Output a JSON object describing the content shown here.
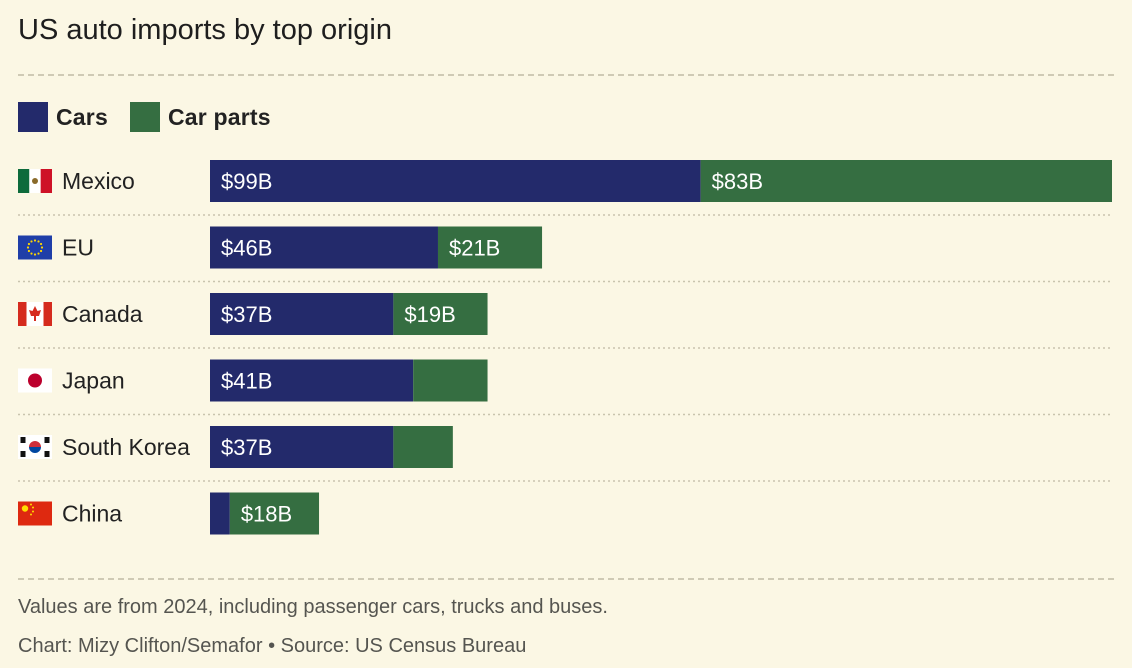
{
  "title": "US auto imports by top origin",
  "legend": [
    {
      "label": "Cars",
      "color": "#232a6b"
    },
    {
      "label": "Car parts",
      "color": "#356e41"
    }
  ],
  "chart_data": {
    "type": "bar",
    "orientation": "horizontal",
    "stacked": true,
    "categories": [
      "Mexico",
      "EU",
      "Canada",
      "Japan",
      "South Korea",
      "China"
    ],
    "flags": [
      "mexico-flag-icon",
      "eu-flag-icon",
      "canada-flag-icon",
      "japan-flag-icon",
      "south-korea-flag-icon",
      "china-flag-icon"
    ],
    "series": [
      {
        "name": "Cars",
        "color": "#232a6b",
        "values": [
          99,
          46,
          37,
          41,
          37,
          4
        ],
        "labels": [
          "$99B",
          "$46B",
          "$37B",
          "$41B",
          "$37B",
          ""
        ]
      },
      {
        "name": "Car parts",
        "color": "#356e41",
        "values": [
          83,
          21,
          19,
          15,
          12,
          18
        ],
        "labels": [
          "$83B",
          "$21B",
          "$19B",
          "",
          "",
          "$18B"
        ]
      }
    ],
    "unit": "billion USD",
    "xlim": [
      0,
      182
    ],
    "grid": false,
    "legend_position": "top-left"
  },
  "footnote": "Values are from 2024, including passenger cars, trucks and buses.",
  "credit": "Chart: Mizy Clifton/Semafor • Source: US Census Bureau"
}
